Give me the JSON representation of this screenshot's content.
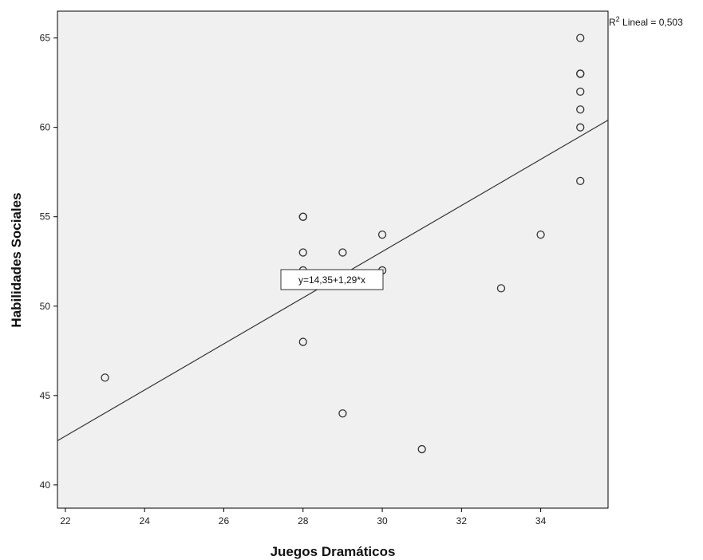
{
  "chart_data": {
    "type": "scatter",
    "xlabel": "Juegos Dramáticos",
    "ylabel": "Habilidades Sociales",
    "xlim": [
      21.8,
      35.7
    ],
    "ylim": [
      38.7,
      66.5
    ],
    "xticks": [
      22,
      24,
      26,
      28,
      30,
      32,
      34
    ],
    "yticks": [
      40,
      45,
      50,
      55,
      60,
      65
    ],
    "x_tick_labels": [
      "22",
      "24",
      "26",
      "28",
      "30",
      "32",
      "34"
    ],
    "y_tick_labels": [
      "40",
      "45",
      "50",
      "55",
      "60",
      "65"
    ],
    "points": [
      {
        "x": 23,
        "y": 46
      },
      {
        "x": 28,
        "y": 55
      },
      {
        "x": 28,
        "y": 55
      },
      {
        "x": 28,
        "y": 53
      },
      {
        "x": 28,
        "y": 52
      },
      {
        "x": 28,
        "y": 48
      },
      {
        "x": 29,
        "y": 53
      },
      {
        "x": 29,
        "y": 44
      },
      {
        "x": 30,
        "y": 54
      },
      {
        "x": 30,
        "y": 52
      },
      {
        "x": 31,
        "y": 42
      },
      {
        "x": 33,
        "y": 51
      },
      {
        "x": 34,
        "y": 54
      },
      {
        "x": 35,
        "y": 65
      },
      {
        "x": 35,
        "y": 63
      },
      {
        "x": 35,
        "y": 63
      },
      {
        "x": 35,
        "y": 62
      },
      {
        "x": 35,
        "y": 61
      },
      {
        "x": 35,
        "y": 60
      },
      {
        "x": 35,
        "y": 57
      }
    ],
    "fit_line": {
      "intercept": 14.35,
      "slope": 1.29,
      "equation_label": "y=14,35+1,29*x"
    },
    "r2_label_prefix": "R",
    "r2_label_superscript": "2",
    "r2_label_suffix": " Lineal = 0,503",
    "grid": false,
    "plot_background": "#f0f0f0",
    "marker_color": "#333333",
    "line_color": "#333333"
  }
}
